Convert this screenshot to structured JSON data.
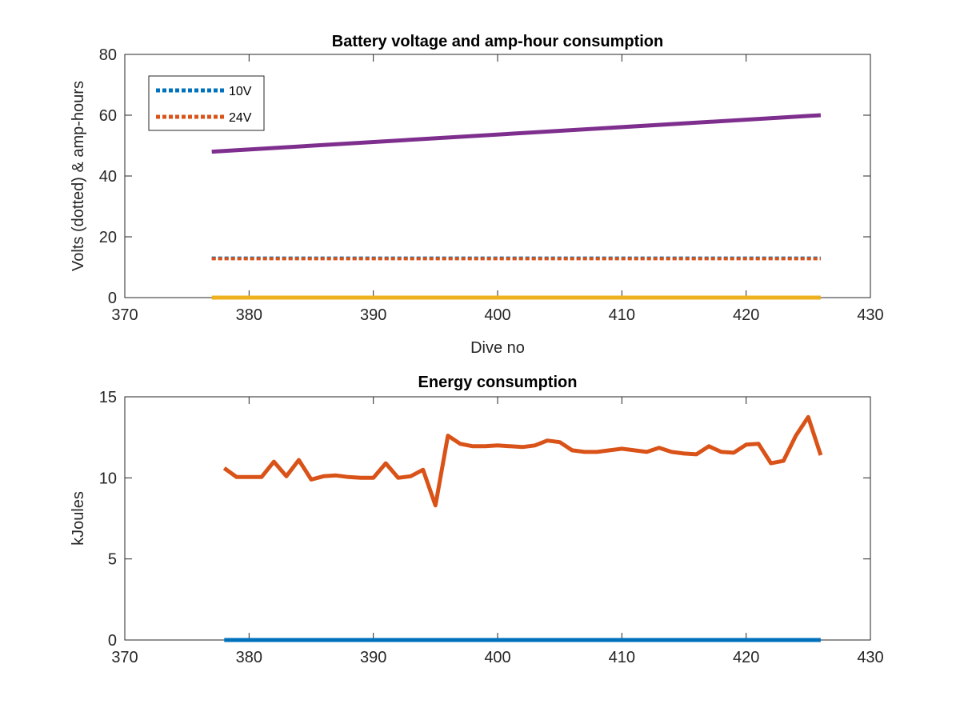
{
  "chart_data": [
    {
      "type": "line",
      "title": "Battery voltage and amp-hour consumption",
      "xlabel": "Dive no",
      "ylabel": "Volts (dotted) & amp-hours",
      "xlim": [
        370,
        430
      ],
      "ylim": [
        0,
        80
      ],
      "xticks": [
        "370",
        "380",
        "390",
        "400",
        "410",
        "420",
        "430"
      ],
      "yticks": [
        "0",
        "20",
        "40",
        "60",
        "80"
      ],
      "legend_position": "top-left",
      "series": [
        {
          "name": "10V",
          "style": "dotted",
          "color": "#0072BD",
          "x": [
            377,
            426
          ],
          "y": [
            13,
            13
          ]
        },
        {
          "name": "24V",
          "style": "dotted",
          "color": "#D95319",
          "x": [
            377,
            426
          ],
          "y": [
            12.8,
            12.8
          ]
        },
        {
          "style": "solid",
          "color": "#EDB120",
          "x": [
            377,
            426
          ],
          "y": [
            0,
            0
          ]
        },
        {
          "style": "solid",
          "color": "#7E2F8E",
          "x": [
            377,
            426
          ],
          "y": [
            48,
            60
          ]
        }
      ]
    },
    {
      "type": "line",
      "title": "Energy consumption",
      "xlabel": "",
      "ylabel": "kJoules",
      "xlim": [
        370,
        430
      ],
      "ylim": [
        0,
        15
      ],
      "xticks": [
        "370",
        "380",
        "390",
        "400",
        "410",
        "420",
        "430"
      ],
      "yticks": [
        "0",
        "5",
        "10",
        "15"
      ],
      "series": [
        {
          "style": "solid",
          "color": "#0072BD",
          "x": [
            378,
            426
          ],
          "y": [
            0,
            0
          ]
        },
        {
          "style": "solid",
          "color": "#D95319",
          "x": [
            378,
            379,
            380,
            381,
            382,
            383,
            384,
            385,
            386,
            387,
            388,
            389,
            390,
            391,
            392,
            393,
            394,
            395,
            396,
            397,
            398,
            399,
            400,
            401,
            402,
            403,
            404,
            405,
            406,
            407,
            408,
            409,
            410,
            411,
            412,
            413,
            414,
            415,
            416,
            417,
            418,
            419,
            420,
            421,
            422,
            423,
            424,
            425,
            426
          ],
          "y": [
            10.6,
            10.05,
            10.05,
            10.05,
            11.0,
            10.1,
            11.1,
            9.9,
            10.1,
            10.15,
            10.05,
            10.0,
            10.0,
            10.9,
            10.0,
            10.1,
            10.5,
            8.3,
            12.6,
            12.1,
            11.95,
            11.95,
            12.0,
            11.95,
            11.9,
            12.0,
            12.3,
            12.2,
            11.7,
            11.6,
            11.6,
            11.7,
            11.8,
            11.7,
            11.6,
            11.85,
            11.6,
            11.5,
            11.45,
            11.95,
            11.6,
            11.55,
            12.05,
            12.1,
            10.9,
            11.05,
            12.6,
            13.75,
            11.4
          ]
        }
      ]
    }
  ]
}
